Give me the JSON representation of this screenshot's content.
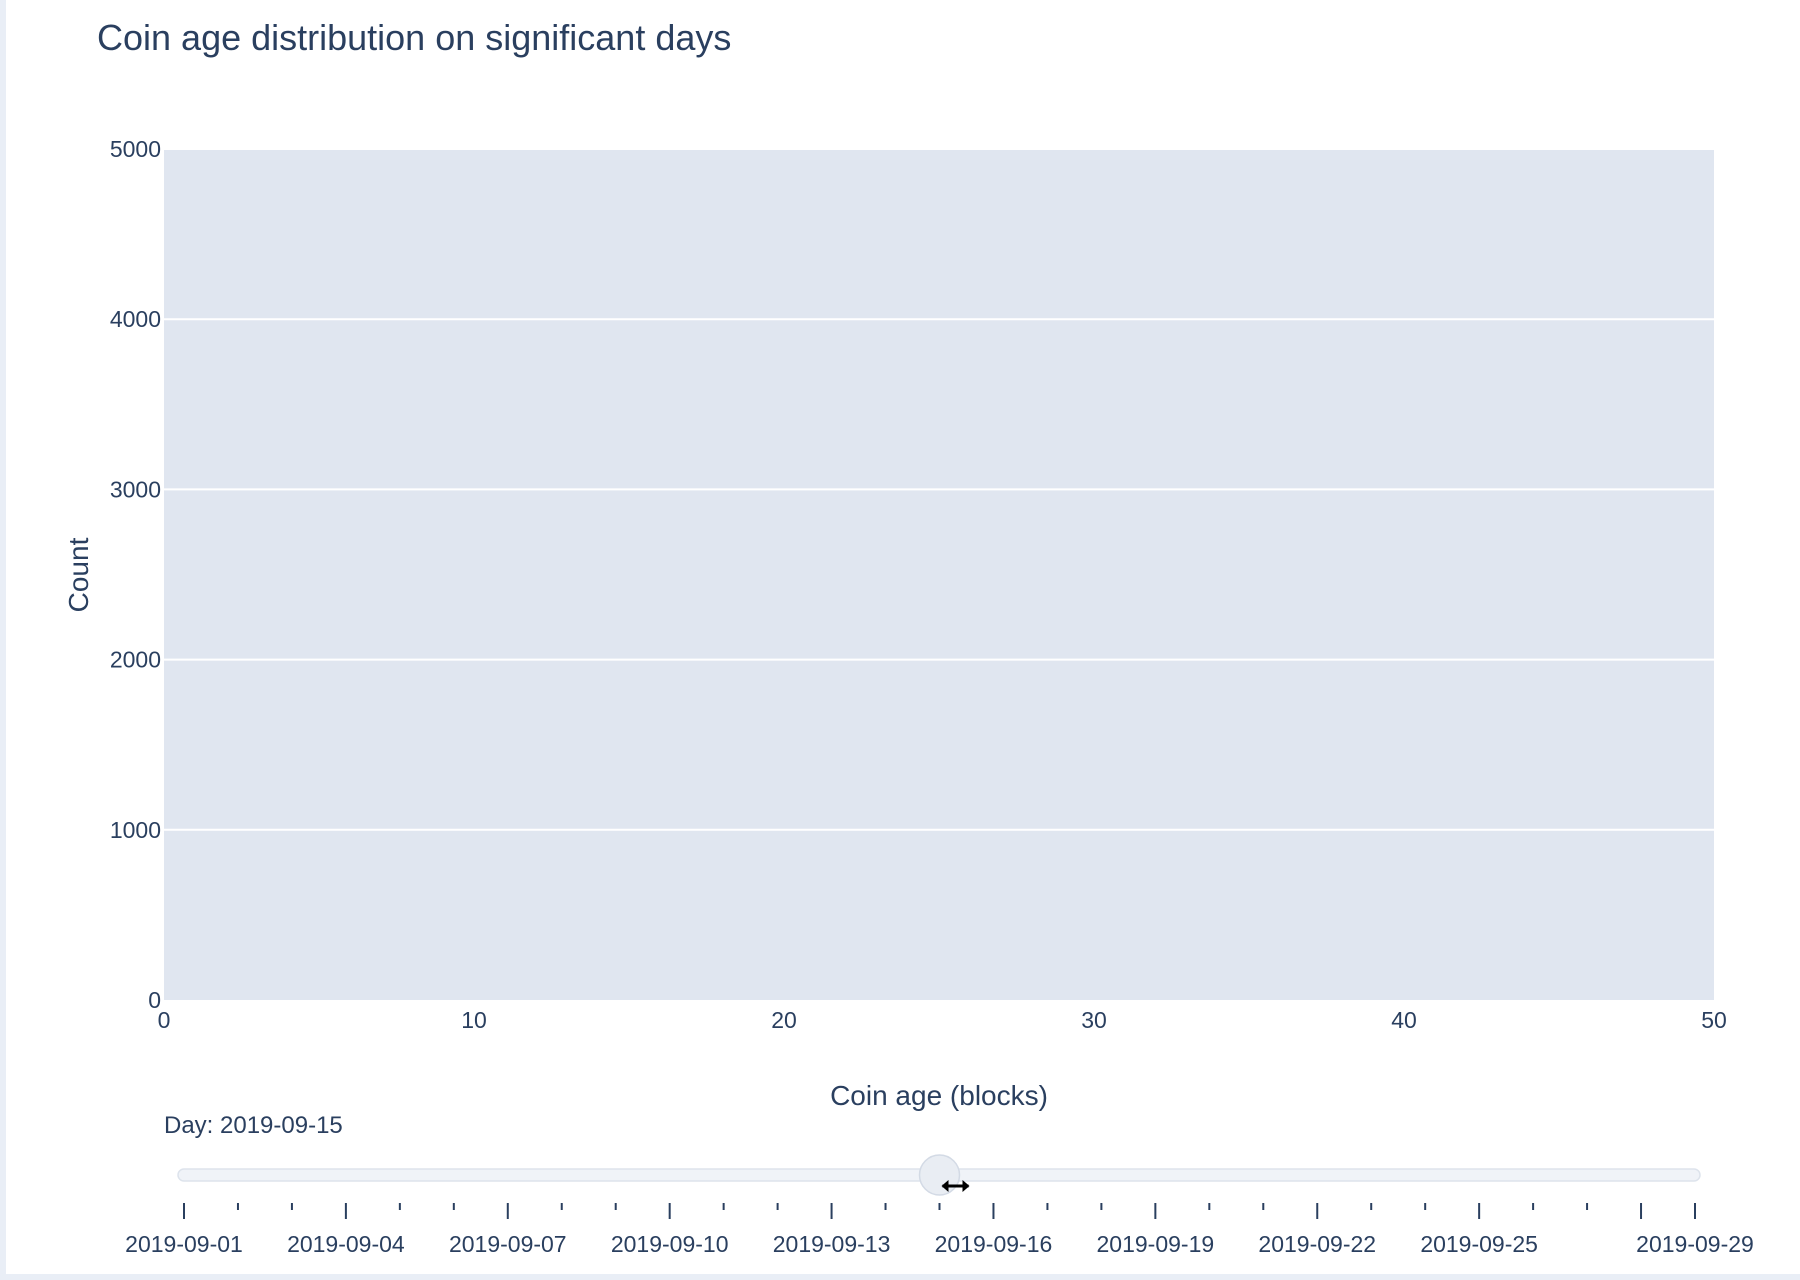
{
  "chart_data": {
    "type": "bar",
    "title": "Coin age distribution on significant days",
    "xlabel": "Coin age (blocks)",
    "ylabel": "Count",
    "xlim": [
      0,
      50
    ],
    "ylim": [
      0,
      5000
    ],
    "x_ticks": [
      "0",
      "10",
      "20",
      "30",
      "40",
      "50"
    ],
    "y_ticks": [
      "0",
      "1000",
      "2000",
      "3000",
      "4000",
      "5000"
    ],
    "grid": true,
    "series": []
  },
  "slider": {
    "prefix": "Day: ",
    "current_value": "2019-09-15",
    "current_label": "Day: 2019-09-15",
    "current_index": 14,
    "step_count": 29,
    "tick_labels": [
      "2019-09-01",
      "2019-09-04",
      "2019-09-07",
      "2019-09-10",
      "2019-09-13",
      "2019-09-16",
      "2019-09-19",
      "2019-09-22",
      "2019-09-25",
      "2019-09-29"
    ]
  },
  "colors": {
    "plot_background": "#e0e6f0",
    "gridline": "#ffffff",
    "text": "#2a3f5f",
    "slider_rail": "#f0f3f8",
    "slider_handle": "#e9edf3"
  }
}
